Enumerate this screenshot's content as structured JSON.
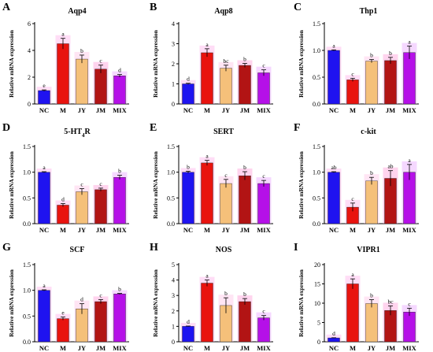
{
  "chart_data": [
    {
      "panel": "A",
      "type": "bar",
      "title": "Aqp4",
      "ylabel": "Relative mRNA expression",
      "categories": [
        "NC",
        "M",
        "JY",
        "JM",
        "MIX"
      ],
      "values": [
        1.0,
        4.5,
        3.35,
        2.6,
        2.1
      ],
      "errors": [
        0.05,
        0.4,
        0.3,
        0.3,
        0.1
      ],
      "letters": [
        "e",
        "a",
        "b",
        "c",
        "d"
      ],
      "ylim": [
        0,
        6
      ],
      "yticks": [
        "0",
        "2",
        "4",
        "6"
      ]
    },
    {
      "panel": "B",
      "type": "bar",
      "title": "Aqp8",
      "ylabel": "Relative mRNA expression",
      "categories": [
        "NC",
        "M",
        "JY",
        "JM",
        "MIX"
      ],
      "values": [
        1.0,
        2.55,
        1.78,
        1.92,
        1.55
      ],
      "errors": [
        0.03,
        0.2,
        0.15,
        0.1,
        0.15
      ],
      "letters": [
        "d",
        "a",
        "bc",
        "b",
        "c"
      ],
      "ylim": [
        0,
        4
      ],
      "yticks": [
        "0",
        "1",
        "2",
        "3",
        "4"
      ]
    },
    {
      "panel": "C",
      "type": "bar",
      "title": "Thp1",
      "ylabel": "Relative mRNA expression",
      "categories": [
        "NC",
        "M",
        "JY",
        "JM",
        "MIX"
      ],
      "values": [
        1.0,
        0.45,
        0.8,
        0.81,
        0.96
      ],
      "errors": [
        0.01,
        0.03,
        0.03,
        0.06,
        0.12
      ],
      "letters": [
        "a",
        "c",
        "b",
        "b",
        "a"
      ],
      "ylim": [
        0,
        1.5
      ],
      "yticks": [
        "0.0",
        "0.5",
        "1.0",
        "1.5"
      ]
    },
    {
      "panel": "D",
      "type": "bar",
      "title": "5-HT",
      "title_sub": "4",
      "title_tail": "R",
      "ylabel": "Relative mRNA expression",
      "categories": [
        "NC",
        "M",
        "JY",
        "JM",
        "MIX"
      ],
      "values": [
        1.0,
        0.36,
        0.62,
        0.66,
        0.9
      ],
      "errors": [
        0.01,
        0.03,
        0.06,
        0.03,
        0.04
      ],
      "letters": [
        "a",
        "d",
        "c",
        "c",
        "b"
      ],
      "ylim": [
        0,
        1.5
      ],
      "yticks": [
        "0.0",
        "0.5",
        "1.0",
        "1.5"
      ]
    },
    {
      "panel": "E",
      "type": "bar",
      "title": "SERT",
      "ylabel": "Relative mRNA expression",
      "categories": [
        "NC",
        "M",
        "JY",
        "JM",
        "MIX"
      ],
      "values": [
        1.0,
        1.18,
        0.78,
        0.93,
        0.78
      ],
      "errors": [
        0.02,
        0.05,
        0.08,
        0.08,
        0.06
      ],
      "letters": [
        "b",
        "a",
        "c",
        "b",
        "c"
      ],
      "ylim": [
        0,
        1.5
      ],
      "yticks": [
        "0.0",
        "0.5",
        "1.0",
        "1.5"
      ]
    },
    {
      "panel": "F",
      "type": "bar",
      "title": "c-kit",
      "ylabel": "Relative mRNA expression",
      "categories": [
        "NC",
        "M",
        "JY",
        "JM",
        "MIX"
      ],
      "values": [
        1.0,
        0.32,
        0.83,
        0.88,
        1.0
      ],
      "errors": [
        0.01,
        0.08,
        0.07,
        0.15,
        0.15
      ],
      "letters": [
        "ab",
        "c",
        "b",
        "ab",
        "a"
      ],
      "ylim": [
        0,
        1.5
      ],
      "yticks": [
        "0.0",
        "0.5",
        "1.0",
        "1.5"
      ]
    },
    {
      "panel": "G",
      "type": "bar",
      "title": "SCF",
      "ylabel": "Relative mRNA expression",
      "categories": [
        "NC",
        "M",
        "JY",
        "JM",
        "MIX"
      ],
      "values": [
        1.0,
        0.45,
        0.64,
        0.78,
        0.93
      ],
      "errors": [
        0.01,
        0.03,
        0.1,
        0.04,
        0.01
      ],
      "letters": [
        "a",
        "e",
        "d",
        "c",
        "b"
      ],
      "ylim": [
        0,
        1.5
      ],
      "yticks": [
        "0.0",
        "0.5",
        "1.0",
        "1.5"
      ]
    },
    {
      "panel": "H",
      "type": "bar",
      "title": "NOS",
      "ylabel": "Relative mRNA expression",
      "categories": [
        "NC",
        "M",
        "JY",
        "JM",
        "MIX"
      ],
      "values": [
        1.0,
        3.8,
        2.35,
        2.6,
        1.55
      ],
      "errors": [
        0.02,
        0.2,
        0.5,
        0.2,
        0.15
      ],
      "letters": [
        "d",
        "a",
        "b",
        "b",
        "c"
      ],
      "ylim": [
        0,
        5
      ],
      "yticks": [
        "0",
        "1",
        "2",
        "3",
        "4",
        "5"
      ]
    },
    {
      "panel": "I",
      "type": "bar",
      "title": "VIPR1",
      "ylabel": "Relative mRNA expression",
      "categories": [
        "NC",
        "M",
        "JY",
        "JM",
        "MIX"
      ],
      "values": [
        1.0,
        15.0,
        9.9,
        8.1,
        7.7
      ],
      "errors": [
        0.05,
        1.3,
        1.0,
        1.2,
        1.0
      ],
      "letters": [
        "d",
        "a",
        "b",
        "bc",
        "c"
      ],
      "ylim": [
        0,
        20
      ],
      "yticks": [
        "0",
        "5",
        "10",
        "15",
        "20"
      ]
    }
  ],
  "colors": {
    "bars": [
      "#1f13f0",
      "#e8130f",
      "#f5c07a",
      "#b21414",
      "#b510e8"
    ],
    "highlights": [
      "#ffb3ea",
      "#ffb3ea",
      "#ffc6e6",
      "#ff9fd9",
      "#e9a8ff"
    ],
    "axis": "#000000"
  }
}
